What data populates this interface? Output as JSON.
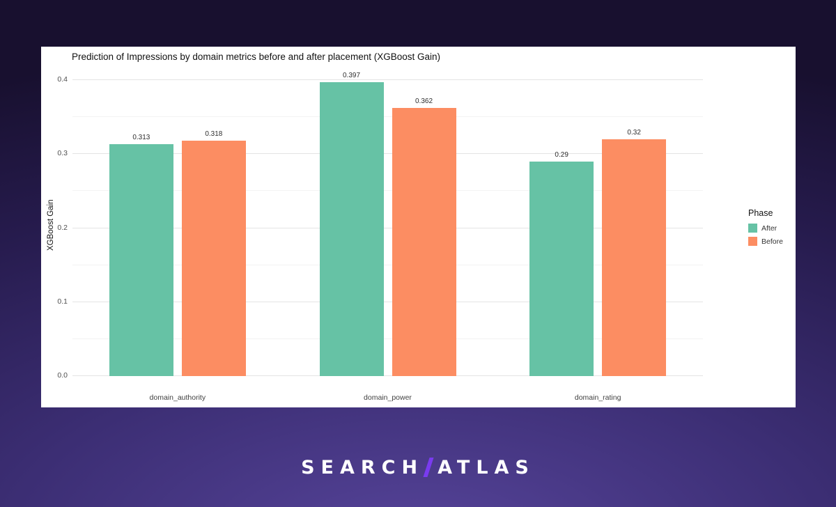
{
  "colors": {
    "background_top": "#18102f",
    "background_bottom": "#56449a",
    "accent_purple": "#7a3bf0",
    "panel_background": "#ffffff"
  },
  "logo": {
    "left": "SEARCH",
    "right": "ATLAS",
    "slash_icon": "slash"
  },
  "chart_data": {
    "type": "bar",
    "title": "Prediction of Impressions by domain metrics before and after placement (XGBoost Gain)",
    "xlabel": "",
    "ylabel": "XGBoost Gain",
    "categories": [
      "domain_authority",
      "domain_power",
      "domain_rating"
    ],
    "series": [
      {
        "name": "After",
        "color": "#66c2a5",
        "values": [
          0.313,
          0.397,
          0.29
        ],
        "labels": [
          "0.313",
          "0.397",
          "0.29"
        ]
      },
      {
        "name": "Before",
        "color": "#fc8d62",
        "values": [
          0.318,
          0.362,
          0.32
        ],
        "labels": [
          "0.318",
          "0.362",
          "0.32"
        ]
      }
    ],
    "ylim": [
      0,
      0.4
    ],
    "yticks": [
      {
        "v": 0.0,
        "label": "0.0"
      },
      {
        "v": 0.1,
        "label": "0.1"
      },
      {
        "v": 0.2,
        "label": "0.2"
      },
      {
        "v": 0.3,
        "label": "0.3"
      },
      {
        "v": 0.4,
        "label": "0.4"
      }
    ],
    "yticks_minor": [
      0.05,
      0.15,
      0.25,
      0.35
    ],
    "grid": true,
    "legend": {
      "title": "Phase",
      "position": "right"
    }
  }
}
